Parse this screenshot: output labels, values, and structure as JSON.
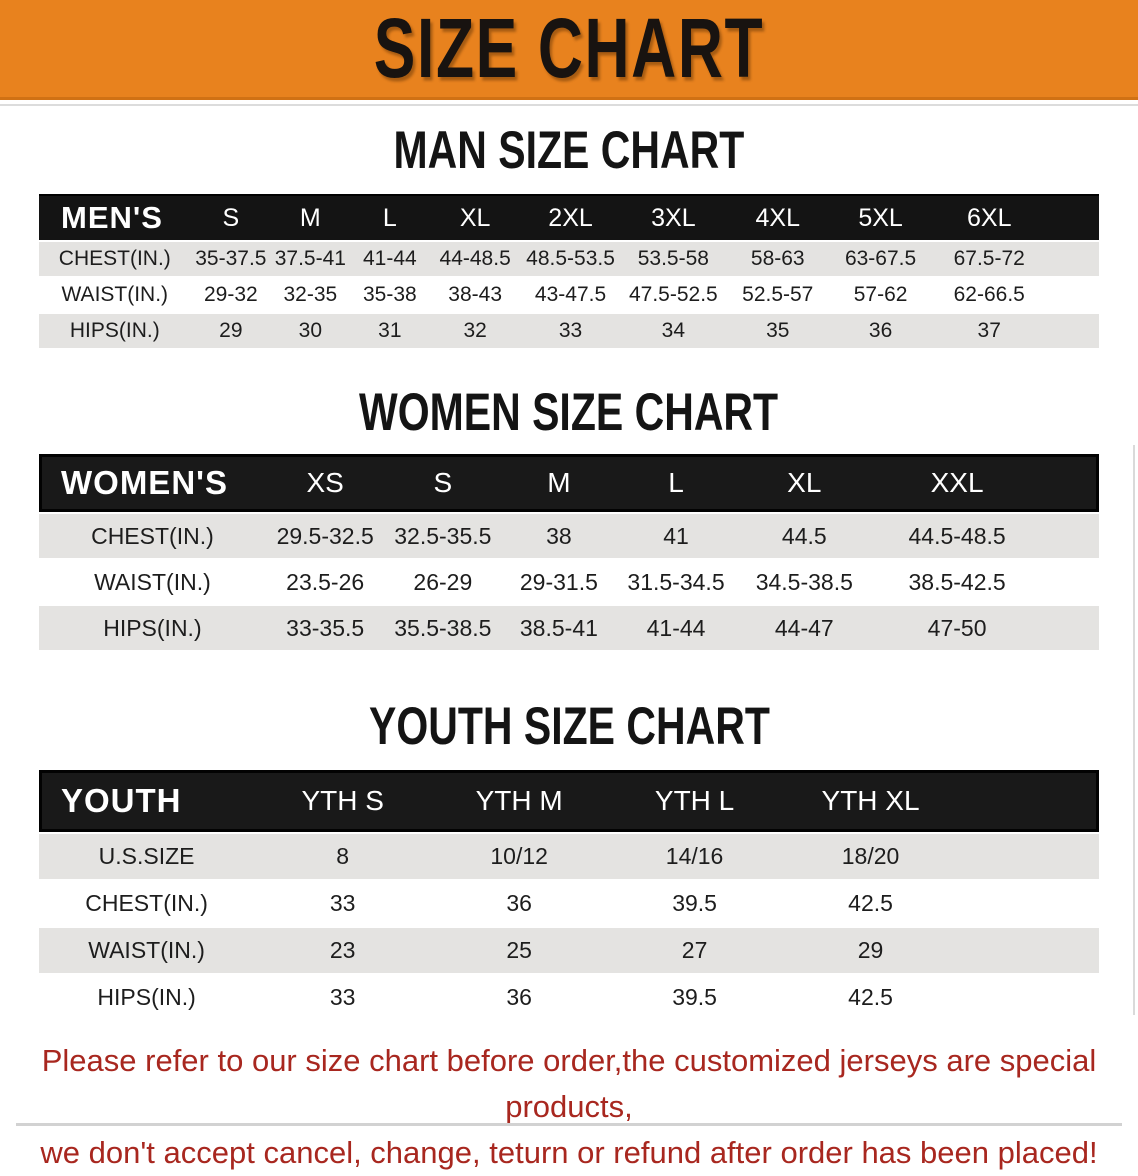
{
  "banner": {
    "title": "SIZE CHART"
  },
  "colors": {
    "banner_orange": "#e8821e",
    "header_black": "#141414",
    "stripe_gray": "#e4e3e1",
    "note_red": "#a8271f"
  },
  "tables": {
    "men": {
      "heading": "MAN SIZE CHART",
      "corner_label": "MEN'S",
      "sizes": [
        "S",
        "M",
        "L",
        "XL",
        "2XL",
        "3XL",
        "4XL",
        "5XL",
        "6XL"
      ],
      "rows": [
        {
          "label": "CHEST(IN.)",
          "values": [
            "35-37.5",
            "37.5-41",
            "41-44",
            "44-48.5",
            "48.5-53.5",
            "53.5-58",
            "58-63",
            "63-67.5",
            "67.5-72"
          ]
        },
        {
          "label": "WAIST(IN.)",
          "values": [
            "29-32",
            "32-35",
            "35-38",
            "38-43",
            "43-47.5",
            "47.5-52.5",
            "52.5-57",
            "57-62",
            "62-66.5"
          ]
        },
        {
          "label": "HIPS(IN.)",
          "values": [
            "29",
            "30",
            "31",
            "32",
            "33",
            "34",
            "35",
            "36",
            "37"
          ]
        }
      ]
    },
    "women": {
      "heading": "WOMEN SIZE CHART",
      "corner_label": "WOMEN'S",
      "sizes": [
        "XS",
        "S",
        "M",
        "L",
        "XL",
        "XXL"
      ],
      "rows": [
        {
          "label": "CHEST(IN.)",
          "values": [
            "29.5-32.5",
            "32.5-35.5",
            "38",
            "41",
            "44.5",
            "44.5-48.5"
          ]
        },
        {
          "label": "WAIST(IN.)",
          "values": [
            "23.5-26",
            "26-29",
            "29-31.5",
            "31.5-34.5",
            "34.5-38.5",
            "38.5-42.5"
          ]
        },
        {
          "label": "HIPS(IN.)",
          "values": [
            "33-35.5",
            "35.5-38.5",
            "38.5-41",
            "41-44",
            "44-47",
            "47-50"
          ]
        }
      ]
    },
    "youth": {
      "heading": "YOUTH SIZE CHART",
      "corner_label": "YOUTH",
      "sizes": [
        "YTH S",
        "YTH M",
        "YTH L",
        "YTH XL"
      ],
      "rows": [
        {
          "label": "U.S.SIZE",
          "values": [
            "8",
            "10/12",
            "14/16",
            "18/20"
          ]
        },
        {
          "label": "CHEST(IN.)",
          "values": [
            "33",
            "36",
            "39.5",
            "42.5"
          ]
        },
        {
          "label": "WAIST(IN.)",
          "values": [
            "23",
            "25",
            "27",
            "29"
          ]
        },
        {
          "label": "HIPS(IN.)",
          "values": [
            "33",
            "36",
            "39.5",
            "42.5"
          ]
        }
      ]
    }
  },
  "footer": {
    "line1": "Please refer to our size chart before order,the customized jerseys are special products,",
    "line2": "we don't accept cancel, change, teturn or refund after order has been placed!"
  }
}
